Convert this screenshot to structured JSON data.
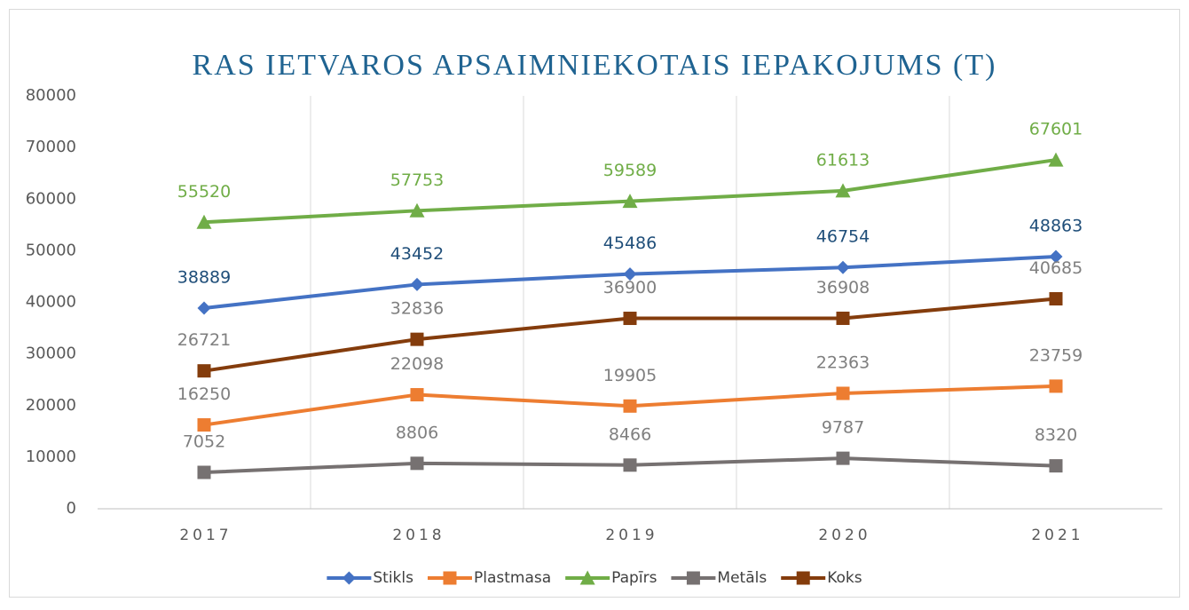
{
  "chart_data": {
    "type": "line",
    "title": "RAS IETVAROS APSAIMNIEKOTAIS IEPAKOJUMS (T)",
    "categories": [
      "2017",
      "2018",
      "2019",
      "2020",
      "2021"
    ],
    "series": [
      {
        "name": "Stikls",
        "color": "#4472c4",
        "marker": "diamond",
        "label_color": "#1f4e79",
        "values": [
          38889,
          43452,
          45486,
          46754,
          48863
        ]
      },
      {
        "name": "Plastmasa",
        "color": "#ed7d31",
        "marker": "square",
        "label_color": "#7f7f7f",
        "values": [
          16250,
          22098,
          19905,
          22363,
          23759
        ]
      },
      {
        "name": "Papīrs",
        "color": "#70ad47",
        "marker": "triangle",
        "label_color": "#70ad47",
        "values": [
          55520,
          57753,
          59589,
          61613,
          67601
        ]
      },
      {
        "name": "Metāls",
        "color": "#767171",
        "marker": "square",
        "label_color": "#7f7f7f",
        "values": [
          7052,
          8806,
          8466,
          9787,
          8320
        ]
      },
      {
        "name": "Koks",
        "color": "#843c0c",
        "marker": "square",
        "label_color": "#7f7f7f",
        "values": [
          26721,
          32836,
          36900,
          36908,
          40685
        ]
      }
    ],
    "ylim": [
      0,
      80000
    ],
    "yticks": [
      0,
      10000,
      20000,
      30000,
      40000,
      50000,
      60000,
      70000,
      80000
    ],
    "grid": "vertical",
    "legend": "bottom"
  }
}
